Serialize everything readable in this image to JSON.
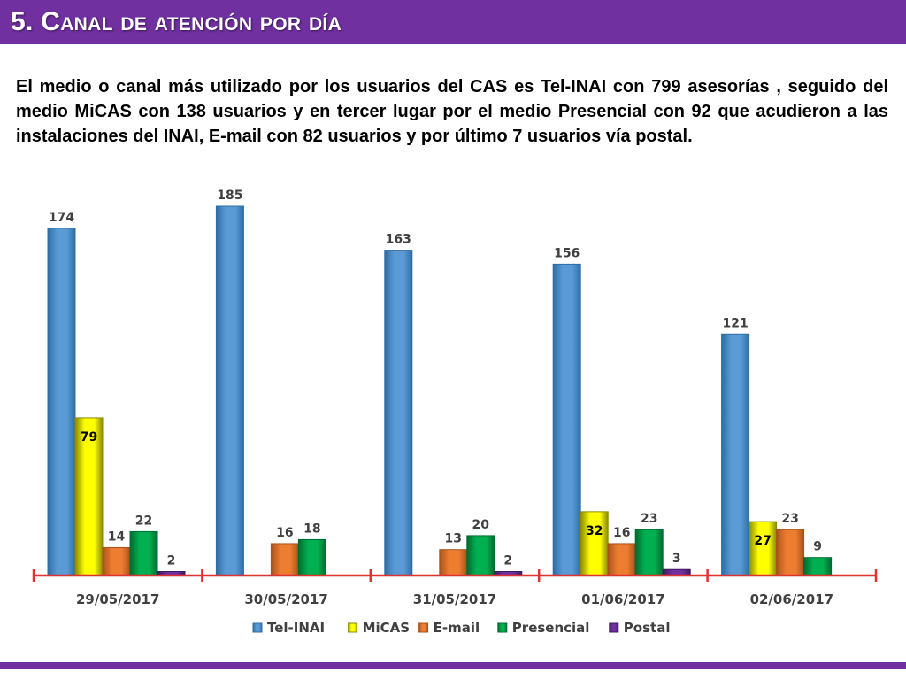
{
  "slide": {
    "title": "5. Canal de atención por día",
    "description": "El medio o canal más utilizado por los usuarios del CAS es Tel-INAI con 799 asesorías , seguido del medio MiCAS con 138 usuarios y en tercer lugar por el medio Presencial con 92 que acudieron a las instalaciones del INAI, E-mail con 82 usuarios y por último 7 usuarios vía postal."
  },
  "colors": {
    "title_bar": "#7030a0",
    "tel_inai": "#5b9bd5",
    "micas": "#ffff00",
    "email": "#ed7d31",
    "presencial": "#00b050",
    "postal": "#7030a0",
    "axis": "#e03030"
  },
  "chart_data": {
    "type": "bar",
    "categories": [
      "29/05/2017",
      "30/05/2017",
      "31/05/2017",
      "01/06/2017",
      "02/06/2017"
    ],
    "series": [
      {
        "name": "Tel-INAI",
        "values": [
          174,
          185,
          163,
          156,
          121
        ]
      },
      {
        "name": "MiCAS",
        "values": [
          79,
          null,
          null,
          32,
          27
        ]
      },
      {
        "name": "E-mail",
        "values": [
          14,
          16,
          13,
          16,
          23
        ]
      },
      {
        "name": "Presencial",
        "values": [
          22,
          18,
          20,
          23,
          9
        ]
      },
      {
        "name": "Postal",
        "values": [
          2,
          null,
          2,
          3,
          null
        ]
      }
    ],
    "ylim": [
      0,
      185
    ],
    "legend_position": "bottom",
    "grid": false
  }
}
